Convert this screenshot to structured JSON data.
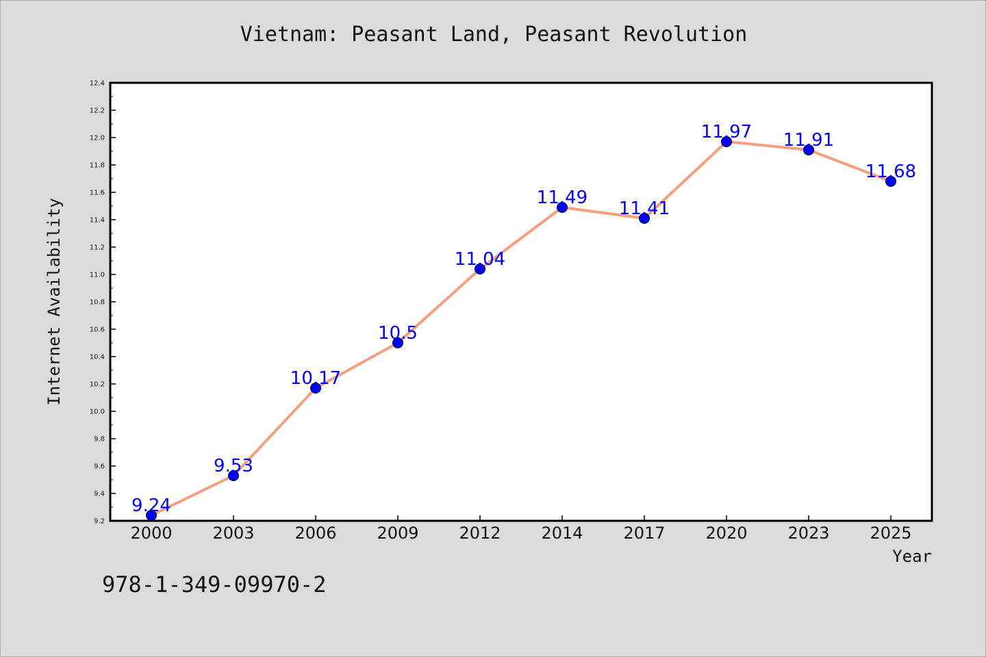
{
  "chart_data": {
    "type": "line",
    "title": "Vietnam: Peasant Land, Peasant Revolution",
    "xlabel": "Year",
    "ylabel": "Internet Availability",
    "categories": [
      "2000",
      "2003",
      "2006",
      "2009",
      "2012",
      "2014",
      "2017",
      "2020",
      "2023",
      "2025"
    ],
    "values": [
      9.24,
      9.53,
      10.17,
      10.5,
      11.04,
      11.49,
      11.41,
      11.97,
      11.91,
      11.68
    ],
    "data_labels": [
      "9.24",
      "9.53",
      "10.17",
      "10.5",
      "11.04",
      "11.49",
      "11.41",
      "11.97",
      "11.91",
      "11.68"
    ],
    "ylim": [
      9.2,
      12.4
    ],
    "yticks": [
      "9.2",
      "9.4",
      "9.6",
      "9.8",
      "10.0",
      "10.2",
      "10.4",
      "10.6",
      "10.8",
      "11.0",
      "11.2",
      "11.4",
      "11.6",
      "11.8",
      "12.0",
      "12.2",
      "12.4"
    ],
    "grid": false,
    "legend": "none",
    "colors": {
      "line": "#f4a07e",
      "marker": "#0000ff",
      "data_label": "#0000ff",
      "background": "#dcdcdc",
      "plot_background": "#ffffff"
    }
  },
  "footer": {
    "isbn": "978-1-349-09970-2"
  }
}
